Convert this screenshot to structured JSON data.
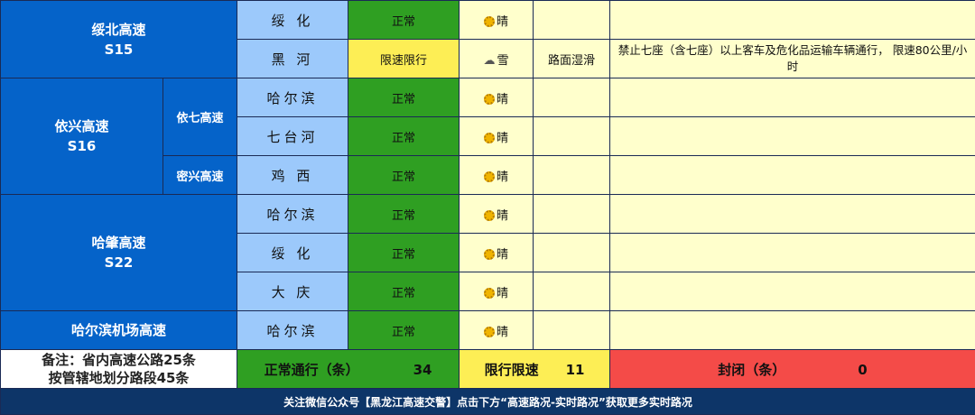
{
  "highways": [
    {
      "name": "绥北高速",
      "code": "S15"
    },
    {
      "name": "依兴高速",
      "code": "S16",
      "subs": [
        "依七高速",
        "密兴高速"
      ]
    },
    {
      "name": "哈肇高速",
      "code": "S22"
    },
    {
      "name": "哈尔滨机场高速"
    }
  ],
  "rows": [
    {
      "city": "绥 化",
      "status": "正常",
      "weather": "晴",
      "weather_icon": "sun-icon",
      "road": "",
      "note": ""
    },
    {
      "city": "黑 河",
      "status": "限速限行",
      "weather": "雪",
      "weather_icon": "snow-cloud-icon",
      "road": "路面湿滑",
      "note": "禁止七座（含七座）以上客车及危化品运输车辆通行， 限速80公里/小时"
    },
    {
      "city": "哈尔滨",
      "status": "正常",
      "weather": "晴",
      "weather_icon": "sun-icon",
      "road": "",
      "note": ""
    },
    {
      "city": "七台河",
      "status": "正常",
      "weather": "晴",
      "weather_icon": "sun-icon",
      "road": "",
      "note": ""
    },
    {
      "city": "鸡 西",
      "status": "正常",
      "weather": "晴",
      "weather_icon": "sun-icon",
      "road": "",
      "note": ""
    },
    {
      "city": "哈尔滨",
      "status": "正常",
      "weather": "晴",
      "weather_icon": "sun-icon",
      "road": "",
      "note": ""
    },
    {
      "city": "绥 化",
      "status": "正常",
      "weather": "晴",
      "weather_icon": "sun-icon",
      "road": "",
      "note": ""
    },
    {
      "city": "大 庆",
      "status": "正常",
      "weather": "晴",
      "weather_icon": "sun-icon",
      "road": "",
      "note": ""
    },
    {
      "city": "哈尔滨",
      "status": "正常",
      "weather": "晴",
      "weather_icon": "sun-icon",
      "road": "",
      "note": ""
    }
  ],
  "summary": {
    "remark_line1": "备注：省内高速公路25条",
    "remark_line2": "按管辖地划分路段45条",
    "normal_label": "正常通行（条）",
    "normal_count": "34",
    "limited_label": "限行限速",
    "limited_count": "11",
    "closed_label": "封闭（条）",
    "closed_count": "0"
  },
  "footer": "关注微信公众号【黑龙江高速交警】点击下方“高速路况-实时路况”获取更多实时路况",
  "colors": {
    "highway": "#0563c9",
    "city": "#9cc9fb",
    "normal": "#2f9f22",
    "limited": "#fdee55",
    "closed": "#f44b48",
    "footer": "#0d3568"
  }
}
